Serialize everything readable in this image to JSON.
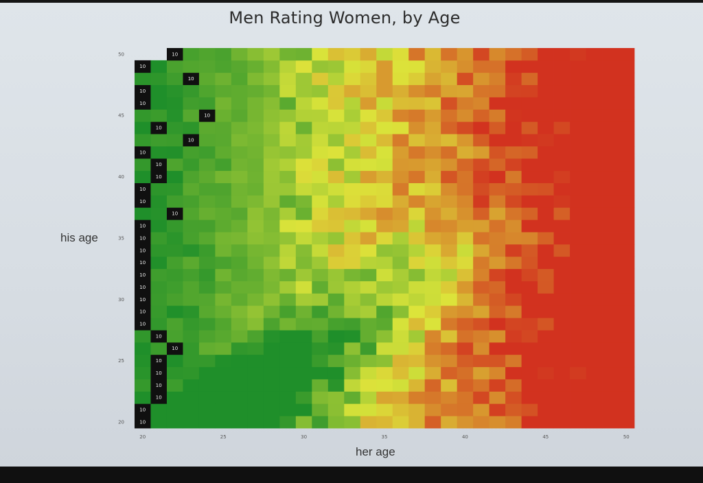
{
  "chart_data": {
    "type": "heatmap",
    "title": "Men Rating Women, by Age",
    "xlabel": "her age",
    "ylabel": "his age",
    "x_range": [
      20,
      50
    ],
    "y_range": [
      20,
      50
    ],
    "x_ticks": [
      "20",
      "25",
      "30",
      "35",
      "40",
      "45",
      "50"
    ],
    "y_ticks": [
      "20",
      "25",
      "30",
      "35",
      "40",
      "45",
      "50"
    ],
    "color_scale": {
      "low": "#d2321f",
      "mid": "#dce43a",
      "high": "#1f8f2a",
      "top_mark": "#101010"
    },
    "top_rating_label": "10",
    "top_rated_cells": [
      {
        "his_age": 50,
        "her_age": 22
      },
      {
        "his_age": 49,
        "her_age": 20
      },
      {
        "his_age": 48,
        "her_age": 23
      },
      {
        "his_age": 47,
        "her_age": 20
      },
      {
        "his_age": 46,
        "her_age": 20
      },
      {
        "his_age": 45,
        "her_age": 24
      },
      {
        "his_age": 44,
        "her_age": 21
      },
      {
        "his_age": 43,
        "her_age": 23
      },
      {
        "his_age": 42,
        "her_age": 20
      },
      {
        "his_age": 41,
        "her_age": 21
      },
      {
        "his_age": 40,
        "her_age": 21
      },
      {
        "his_age": 39,
        "her_age": 20
      },
      {
        "his_age": 38,
        "her_age": 20
      },
      {
        "his_age": 37,
        "her_age": 22
      },
      {
        "his_age": 36,
        "her_age": 20
      },
      {
        "his_age": 35,
        "her_age": 20
      },
      {
        "his_age": 34,
        "her_age": 20
      },
      {
        "his_age": 33,
        "her_age": 20
      },
      {
        "his_age": 32,
        "her_age": 20
      },
      {
        "his_age": 31,
        "her_age": 20
      },
      {
        "his_age": 30,
        "her_age": 20
      },
      {
        "his_age": 29,
        "her_age": 20
      },
      {
        "his_age": 28,
        "her_age": 20
      },
      {
        "his_age": 27,
        "her_age": 21
      },
      {
        "his_age": 26,
        "her_age": 22
      },
      {
        "his_age": 25,
        "her_age": 21
      },
      {
        "his_age": 24,
        "her_age": 21
      },
      {
        "his_age": 23,
        "her_age": 21
      },
      {
        "his_age": 22,
        "her_age": 21
      },
      {
        "his_age": 21,
        "her_age": 20
      },
      {
        "his_age": 20,
        "her_age": 20
      }
    ]
  }
}
